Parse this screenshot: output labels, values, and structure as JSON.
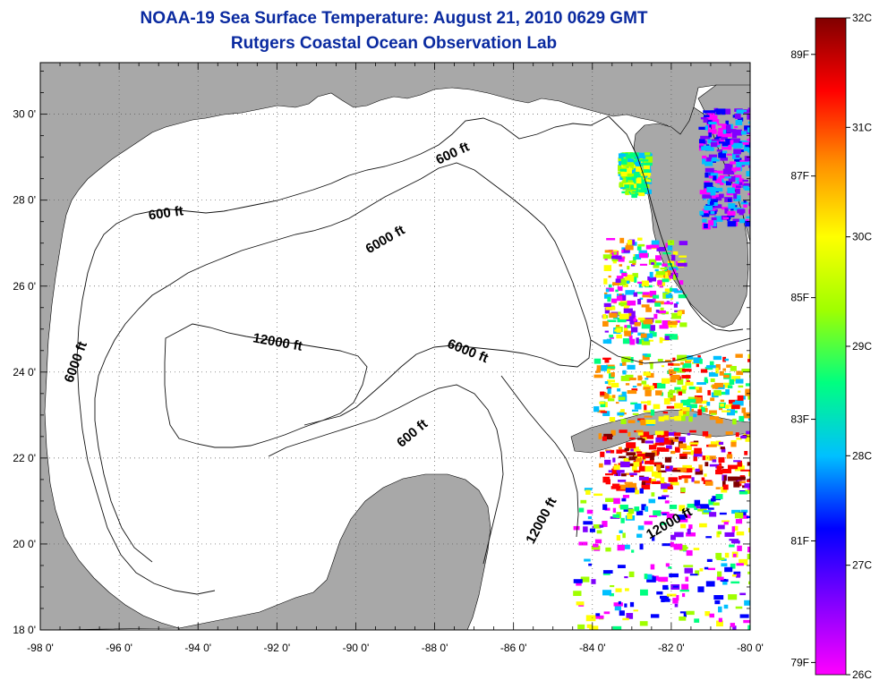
{
  "title": {
    "line1": "NOAA-19 Sea Surface Temperature:  August 21, 2010 0629 GMT",
    "line2": "Rutgers Coastal Ocean Observation Lab"
  },
  "map": {
    "lat_ticks": [
      "30 0'",
      "28 0'",
      "26 0'",
      "24 0'",
      "22 0'",
      "20 0'",
      "18 0'"
    ],
    "lat_values": [
      30,
      28,
      26,
      24,
      22,
      20,
      18
    ],
    "lon_ticks": [
      "-98 0'",
      "-96 0'",
      "-94 0'",
      "-92 0'",
      "-90 0'",
      "-88 0'",
      "-86 0'",
      "-84 0'",
      "-82 0'",
      "-80 0'"
    ],
    "lon_values": [
      -98,
      -96,
      -94,
      -92,
      -90,
      -88,
      -86,
      -84,
      -82,
      -80
    ],
    "lon_range": [
      -98,
      -80
    ],
    "lat_range": [
      18,
      31.2
    ],
    "land_color": "#a8a8a8",
    "contour_labels": [
      {
        "text": "600 ft",
        "lon": -94.8,
        "lat": 27.6,
        "rot": -8
      },
      {
        "text": "600 ft",
        "lon": -87.5,
        "lat": 29.0,
        "rot": -25
      },
      {
        "text": "6000 ft",
        "lon": -89.2,
        "lat": 27.0,
        "rot": -30
      },
      {
        "text": "12000 ft",
        "lon": -92.0,
        "lat": 24.6,
        "rot": 10
      },
      {
        "text": "6000 ft",
        "lon": -97.0,
        "lat": 24.2,
        "rot": -70
      },
      {
        "text": "6000 ft",
        "lon": -87.2,
        "lat": 24.4,
        "rot": 22
      },
      {
        "text": "600 ft",
        "lon": -88.5,
        "lat": 22.5,
        "rot": -40
      },
      {
        "text": "12000 ft",
        "lon": -85.2,
        "lat": 20.5,
        "rot": -62
      },
      {
        "text": "12000 ft",
        "lon": -82.0,
        "lat": 20.4,
        "rot": -30
      }
    ]
  },
  "colorbar": {
    "celsius_labels": [
      "32C",
      "31C",
      "30C",
      "29C",
      "28C",
      "27C",
      "26C"
    ],
    "celsius_values": [
      32,
      31,
      30,
      29,
      28,
      27,
      26
    ],
    "fahrenheit_labels": [
      "89F",
      "87F",
      "85F",
      "83F",
      "81F",
      "79F"
    ],
    "fahrenheit_values": [
      89,
      87,
      85,
      83,
      81,
      79
    ],
    "range_c": [
      26,
      32
    ],
    "colors": [
      "#ff00ff",
      "#8000ff",
      "#0000ff",
      "#00c0ff",
      "#00ff80",
      "#a0ff00",
      "#ffff00",
      "#ff9000",
      "#ff0000",
      "#800000"
    ]
  }
}
